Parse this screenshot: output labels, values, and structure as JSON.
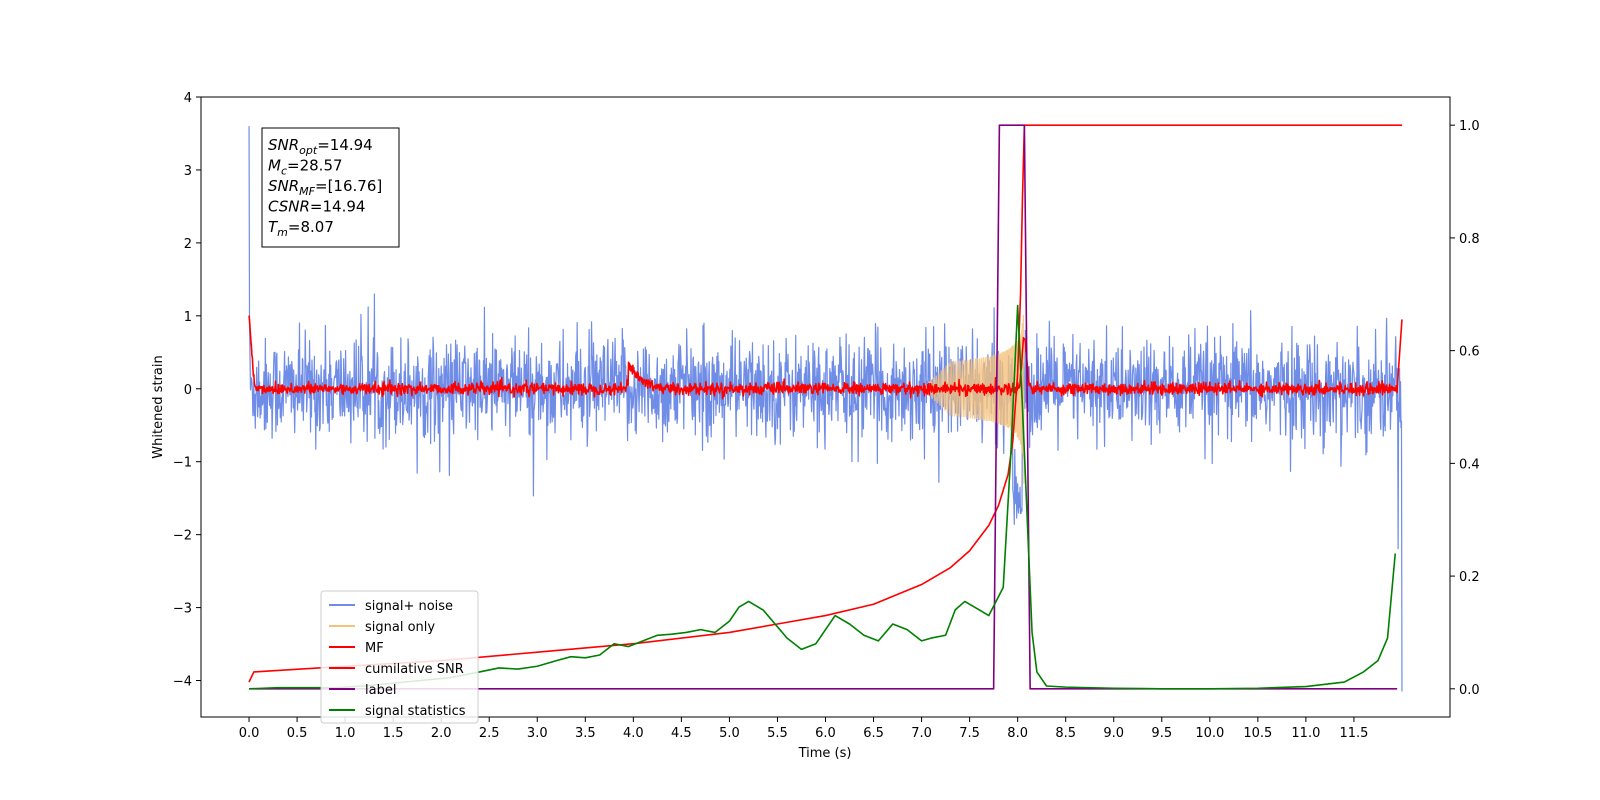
{
  "chart_data": {
    "type": "line",
    "xlabel": "Time (s)",
    "ylabel": "Whitened strain",
    "xlim": [
      -0.5,
      12.5
    ],
    "ylim": [
      -4.5,
      4.0
    ],
    "y2lim": [
      -0.05,
      1.05
    ],
    "x_ticks": [
      "0.0",
      "0.5",
      "1.0",
      "1.5",
      "2.0",
      "2.5",
      "3.0",
      "3.5",
      "4.0",
      "4.5",
      "5.0",
      "5.5",
      "6.0",
      "6.5",
      "7.0",
      "7.5",
      "8.0",
      "8.5",
      "9.0",
      "9.5",
      "10.0",
      "10.5",
      "11.0",
      "11.5"
    ],
    "y_ticks": [
      "4",
      "3",
      "2",
      "1",
      "0",
      "−1",
      "−2",
      "−3",
      "−4"
    ],
    "y2_ticks": [
      "1.0",
      "0.8",
      "0.6",
      "0.4",
      "0.2",
      "0.0"
    ],
    "grid": false,
    "legend_position": "lower-left",
    "annotation": {
      "lines": [
        {
          "sym": "SNR",
          "sub": "opt",
          "value": "=14.94"
        },
        {
          "sym": "M",
          "sub": "c",
          "value": "=28.57"
        },
        {
          "sym": "SNR",
          "sub": "MF",
          "value": "=[16.76]"
        },
        {
          "sym": "CSNR",
          "sub": "",
          "value": "=14.94"
        },
        {
          "sym": "T",
          "sub": "m",
          "value": "=8.07"
        }
      ]
    },
    "series": [
      {
        "name": "signal+ noise",
        "color": "#6f8ce6",
        "axis": "left",
        "style": "noise",
        "t_range": [
          0.0,
          12.0
        ],
        "amplitude": 0.55,
        "start_spike": 3.6,
        "end_spike": -4.15,
        "peak_t": 8.0,
        "peak_value": -1.5
      },
      {
        "name": "signal only",
        "color": "#f5c27a",
        "axis": "left",
        "style": "chirp",
        "t_range": [
          7.0,
          8.07
        ],
        "peak_amplitude": 1.3
      },
      {
        "name": "MF",
        "color": "#ff0000",
        "axis": "left",
        "style": "small-noise",
        "t_range": [
          0.0,
          12.0
        ],
        "amplitude": 0.04,
        "start_value": 1.0,
        "end_value": 0.95,
        "bump_t": 3.95,
        "bump_value": 0.38,
        "peak_t": 8.07,
        "peak_value": 0.68
      },
      {
        "name": "cumilative SNR",
        "color": "#ff0000",
        "axis": "right",
        "x": [
          0.0,
          0.05,
          1.0,
          2.0,
          3.0,
          4.0,
          5.0,
          5.5,
          6.0,
          6.5,
          7.0,
          7.3,
          7.5,
          7.7,
          7.8,
          7.9,
          7.95,
          8.0,
          8.03,
          8.05,
          8.07,
          8.1,
          12.0
        ],
        "y": [
          0.012,
          0.03,
          0.04,
          0.05,
          0.065,
          0.08,
          0.1,
          0.115,
          0.13,
          0.15,
          0.185,
          0.215,
          0.245,
          0.29,
          0.325,
          0.38,
          0.44,
          0.56,
          0.7,
          0.87,
          1.0,
          1.0,
          1.0
        ]
      },
      {
        "name": "label",
        "color": "#800080",
        "axis": "right",
        "x": [
          0.0,
          7.75,
          7.81,
          8.07,
          8.13,
          11.95
        ],
        "y": [
          0.0,
          0.0,
          1.0,
          1.0,
          0.0,
          0.0
        ]
      },
      {
        "name": "signal statistics",
        "color": "#008000",
        "axis": "right",
        "x": [
          0.0,
          0.3,
          0.6,
          0.9,
          1.2,
          1.5,
          1.8,
          2.1,
          2.4,
          2.6,
          2.8,
          3.0,
          3.2,
          3.35,
          3.5,
          3.65,
          3.8,
          3.95,
          4.1,
          4.25,
          4.4,
          4.55,
          4.7,
          4.85,
          5.0,
          5.1,
          5.2,
          5.35,
          5.45,
          5.6,
          5.75,
          5.9,
          6.1,
          6.25,
          6.4,
          6.55,
          6.7,
          6.85,
          7.0,
          7.1,
          7.25,
          7.35,
          7.45,
          7.55,
          7.7,
          7.85,
          7.93,
          8.0,
          8.05,
          8.1,
          8.15,
          8.2,
          8.3,
          8.5,
          9.0,
          9.5,
          10.0,
          10.5,
          11.0,
          11.4,
          11.6,
          11.75,
          11.85,
          11.93
        ],
        "y": [
          0.0,
          0.002,
          0.002,
          0.002,
          0.005,
          0.01,
          0.015,
          0.02,
          0.03,
          0.037,
          0.035,
          0.04,
          0.05,
          0.057,
          0.055,
          0.06,
          0.08,
          0.075,
          0.085,
          0.095,
          0.097,
          0.1,
          0.105,
          0.1,
          0.12,
          0.145,
          0.155,
          0.14,
          0.12,
          0.09,
          0.07,
          0.08,
          0.13,
          0.115,
          0.095,
          0.085,
          0.115,
          0.105,
          0.085,
          0.09,
          0.095,
          0.14,
          0.155,
          0.145,
          0.13,
          0.18,
          0.42,
          0.68,
          0.5,
          0.3,
          0.1,
          0.03,
          0.005,
          0.003,
          0.001,
          0.0,
          0.0,
          0.001,
          0.004,
          0.012,
          0.03,
          0.05,
          0.09,
          0.24
        ]
      }
    ]
  }
}
